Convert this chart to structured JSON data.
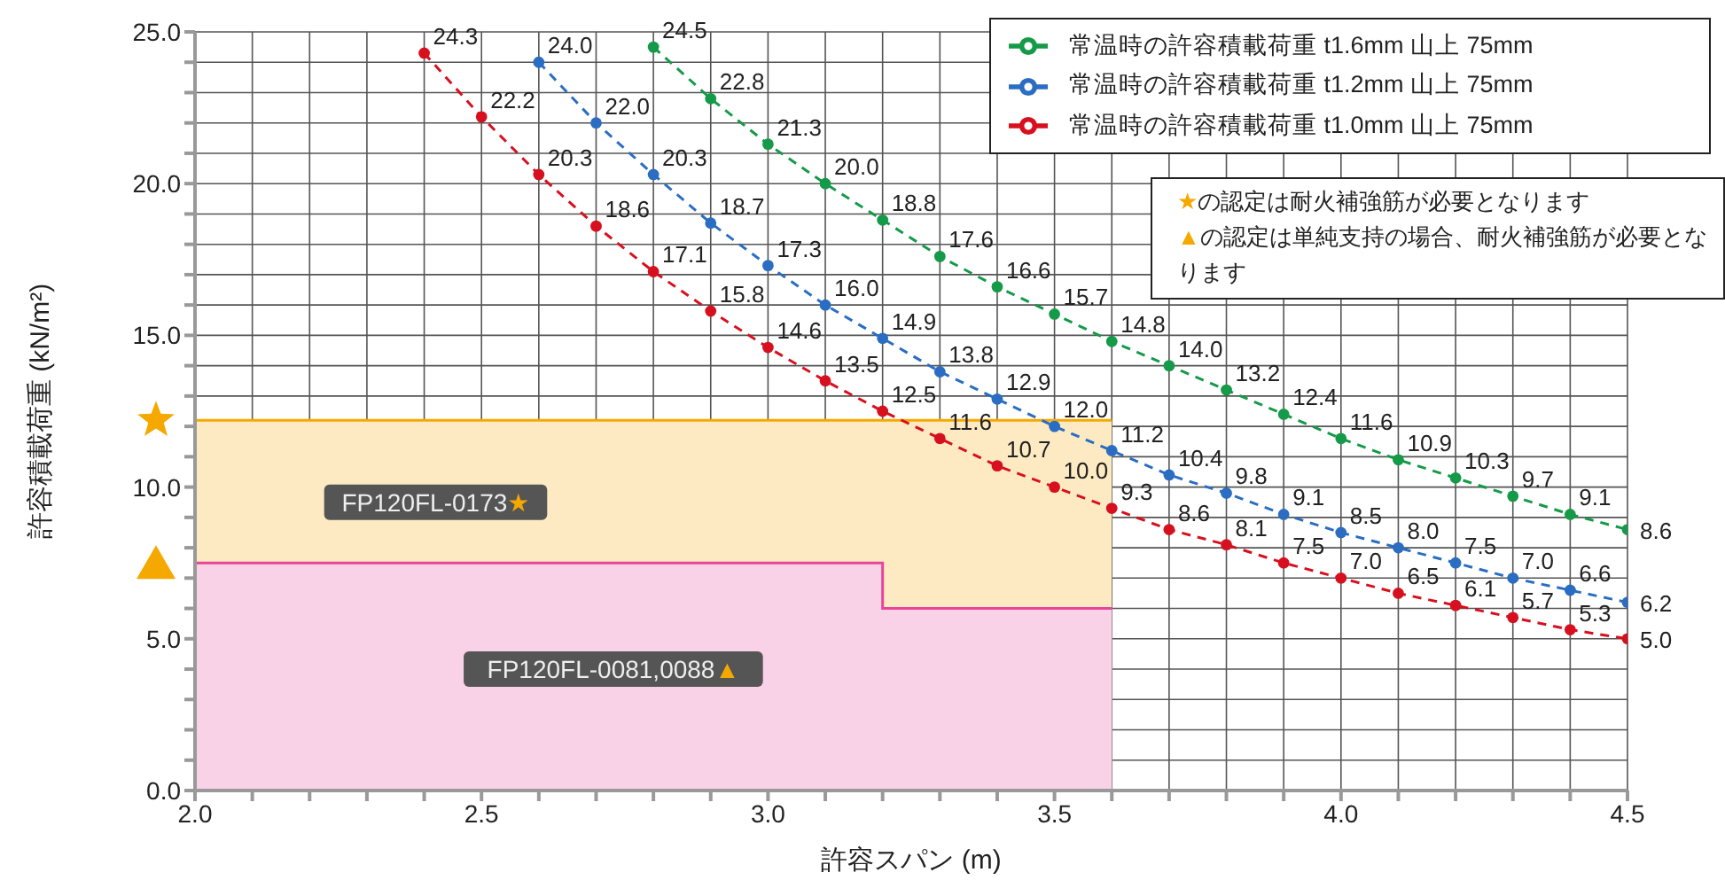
{
  "chart_data": {
    "type": "line",
    "xlabel": "許容スパン (m)",
    "ylabel": "許容積載荷重 (kN/m²)",
    "xlim": [
      2.0,
      4.5
    ],
    "ylim": [
      0,
      25
    ],
    "xticks": [
      {
        "value": 2.0,
        "label": "2.0"
      },
      {
        "value": 2.1,
        "label": null
      },
      {
        "value": 2.2,
        "label": null
      },
      {
        "value": 2.3,
        "label": null
      },
      {
        "value": 2.4,
        "label": null
      },
      {
        "value": 2.5,
        "label": "2.5"
      },
      {
        "value": 2.6,
        "label": null
      },
      {
        "value": 2.7,
        "label": null
      },
      {
        "value": 2.8,
        "label": null
      },
      {
        "value": 2.9,
        "label": null
      },
      {
        "value": 3.0,
        "label": "3.0"
      },
      {
        "value": 3.1,
        "label": null
      },
      {
        "value": 3.2,
        "label": null
      },
      {
        "value": 3.3,
        "label": null
      },
      {
        "value": 3.4,
        "label": null
      },
      {
        "value": 3.5,
        "label": "3.5"
      },
      {
        "value": 3.6,
        "label": null
      },
      {
        "value": 3.7,
        "label": null
      },
      {
        "value": 3.8,
        "label": null
      },
      {
        "value": 3.9,
        "label": null
      },
      {
        "value": 4.0,
        "label": "4.0"
      },
      {
        "value": 4.1,
        "label": null
      },
      {
        "value": 4.2,
        "label": null
      },
      {
        "value": 4.3,
        "label": null
      },
      {
        "value": 4.4,
        "label": null
      },
      {
        "value": 4.5,
        "label": "4.5"
      }
    ],
    "yticks": [
      {
        "value": 0,
        "label": "0.0"
      },
      {
        "value": 1,
        "label": null
      },
      {
        "value": 2,
        "label": null
      },
      {
        "value": 3,
        "label": null
      },
      {
        "value": 4,
        "label": null
      },
      {
        "value": 5,
        "label": "5.0"
      },
      {
        "value": 6,
        "label": null
      },
      {
        "value": 7,
        "label": null
      },
      {
        "value": 8,
        "label": null
      },
      {
        "value": 9,
        "label": null
      },
      {
        "value": 10,
        "label": "10.0"
      },
      {
        "value": 11,
        "label": null
      },
      {
        "value": 12,
        "label": null
      },
      {
        "value": 13,
        "label": null
      },
      {
        "value": 14,
        "label": null
      },
      {
        "value": 15,
        "label": "15.0"
      },
      {
        "value": 16,
        "label": null
      },
      {
        "value": 17,
        "label": null
      },
      {
        "value": 18,
        "label": null
      },
      {
        "value": 19,
        "label": null
      },
      {
        "value": 20,
        "label": "20.0"
      },
      {
        "value": 21,
        "label": null
      },
      {
        "value": 22,
        "label": null
      },
      {
        "value": 23,
        "label": null
      },
      {
        "value": 24,
        "label": null
      },
      {
        "value": 25,
        "label": "25.0"
      }
    ],
    "grid": true,
    "legend": "top right",
    "series": [
      {
        "type": "area",
        "color": "#f5a800",
        "x": [
          2.0,
          3.6
        ],
        "values": [
          12.2,
          12.2
        ]
      },
      {
        "type": "area",
        "color": "#e8449a",
        "x": [
          2.0,
          3.2,
          3.2,
          3.6
        ],
        "values": [
          7.5,
          7.5,
          6.0,
          6.0
        ]
      },
      {
        "name": "常温時の許容積載荷重 t1.6mm 山上 75mm",
        "color": "#149a48",
        "marker": "circle",
        "line_style": "dashed",
        "x": [
          2.8,
          2.9,
          3.0,
          3.1,
          3.2,
          3.3,
          3.4,
          3.5,
          3.6,
          3.7,
          3.8,
          3.9,
          4.0,
          4.1,
          4.2,
          4.3,
          4.4,
          4.5
        ],
        "values": [
          24.5,
          22.8,
          21.3,
          20.0,
          18.8,
          17.6,
          16.6,
          15.7,
          14.8,
          14.0,
          13.2,
          12.4,
          11.6,
          10.9,
          10.3,
          9.7,
          9.1,
          8.6
        ],
        "value_labels": [
          "24.5",
          "22.8",
          "21.3",
          "20.0",
          "18.8",
          "17.6",
          "16.6",
          "15.7",
          "14.8",
          "14.0",
          "13.2",
          "12.4",
          "11.6",
          "10.9",
          "10.3",
          "9.7",
          "9.1",
          "8.6"
        ]
      },
      {
        "name": "常温時の許容積載荷重 t1.2mm 山上 75mm",
        "color": "#2a6dc2",
        "marker": "circle",
        "line_style": "dashed",
        "x": [
          2.6,
          2.7,
          2.8,
          2.9,
          3.0,
          3.1,
          3.2,
          3.3,
          3.4,
          3.5,
          3.6,
          3.7,
          3.8,
          3.9,
          4.0,
          4.1,
          4.2,
          4.3,
          4.4,
          4.5
        ],
        "values": [
          24.0,
          22.0,
          20.3,
          18.7,
          17.3,
          16.0,
          14.9,
          13.8,
          12.9,
          12.0,
          11.2,
          10.4,
          9.8,
          9.1,
          8.5,
          8.0,
          7.5,
          7.0,
          6.6,
          6.2
        ],
        "value_labels": [
          "24.0",
          "22.0",
          "20.3",
          "18.7",
          "17.3",
          "16.0",
          "14.9",
          "13.8",
          "12.9",
          "12.0",
          "11.2",
          "10.4",
          "9.8",
          "9.1",
          "8.5",
          "8.0",
          "7.5",
          "7.0",
          "6.6",
          "6.2"
        ]
      },
      {
        "name": "常温時の許容積載荷重 t1.0mm 山上 75mm",
        "color": "#d7101f",
        "marker": "circle",
        "line_style": "dashed",
        "x": [
          2.4,
          2.5,
          2.6,
          2.7,
          2.8,
          2.9,
          3.0,
          3.1,
          3.2,
          3.3,
          3.4,
          3.5,
          3.6,
          3.7,
          3.8,
          3.9,
          4.0,
          4.1,
          4.2,
          4.3,
          4.4,
          4.5
        ],
        "values": [
          24.3,
          22.2,
          20.3,
          18.6,
          17.1,
          15.8,
          14.6,
          13.5,
          12.5,
          11.6,
          10.7,
          10.0,
          9.3,
          8.6,
          8.1,
          7.5,
          7.0,
          6.5,
          6.1,
          5.7,
          5.3,
          5.0
        ],
        "value_labels": [
          "24.3",
          "22.2",
          "20.3",
          "18.6",
          "17.1",
          "15.8",
          "14.6",
          "13.5",
          "12.5",
          "11.6",
          "10.7",
          "10.0",
          "9.3",
          "8.6",
          "8.1",
          "7.5",
          "7.0",
          "6.5",
          "6.1",
          "5.7",
          "5.3",
          "5.0"
        ]
      }
    ],
    "annotations": [
      "FP120FL-0173★",
      "FP120FL-0081,0088▲",
      "★の認定は耐火補強筋が必要となります",
      "▲の認定は単純支持の場合、耐火補強筋が必要となります"
    ]
  }
}
